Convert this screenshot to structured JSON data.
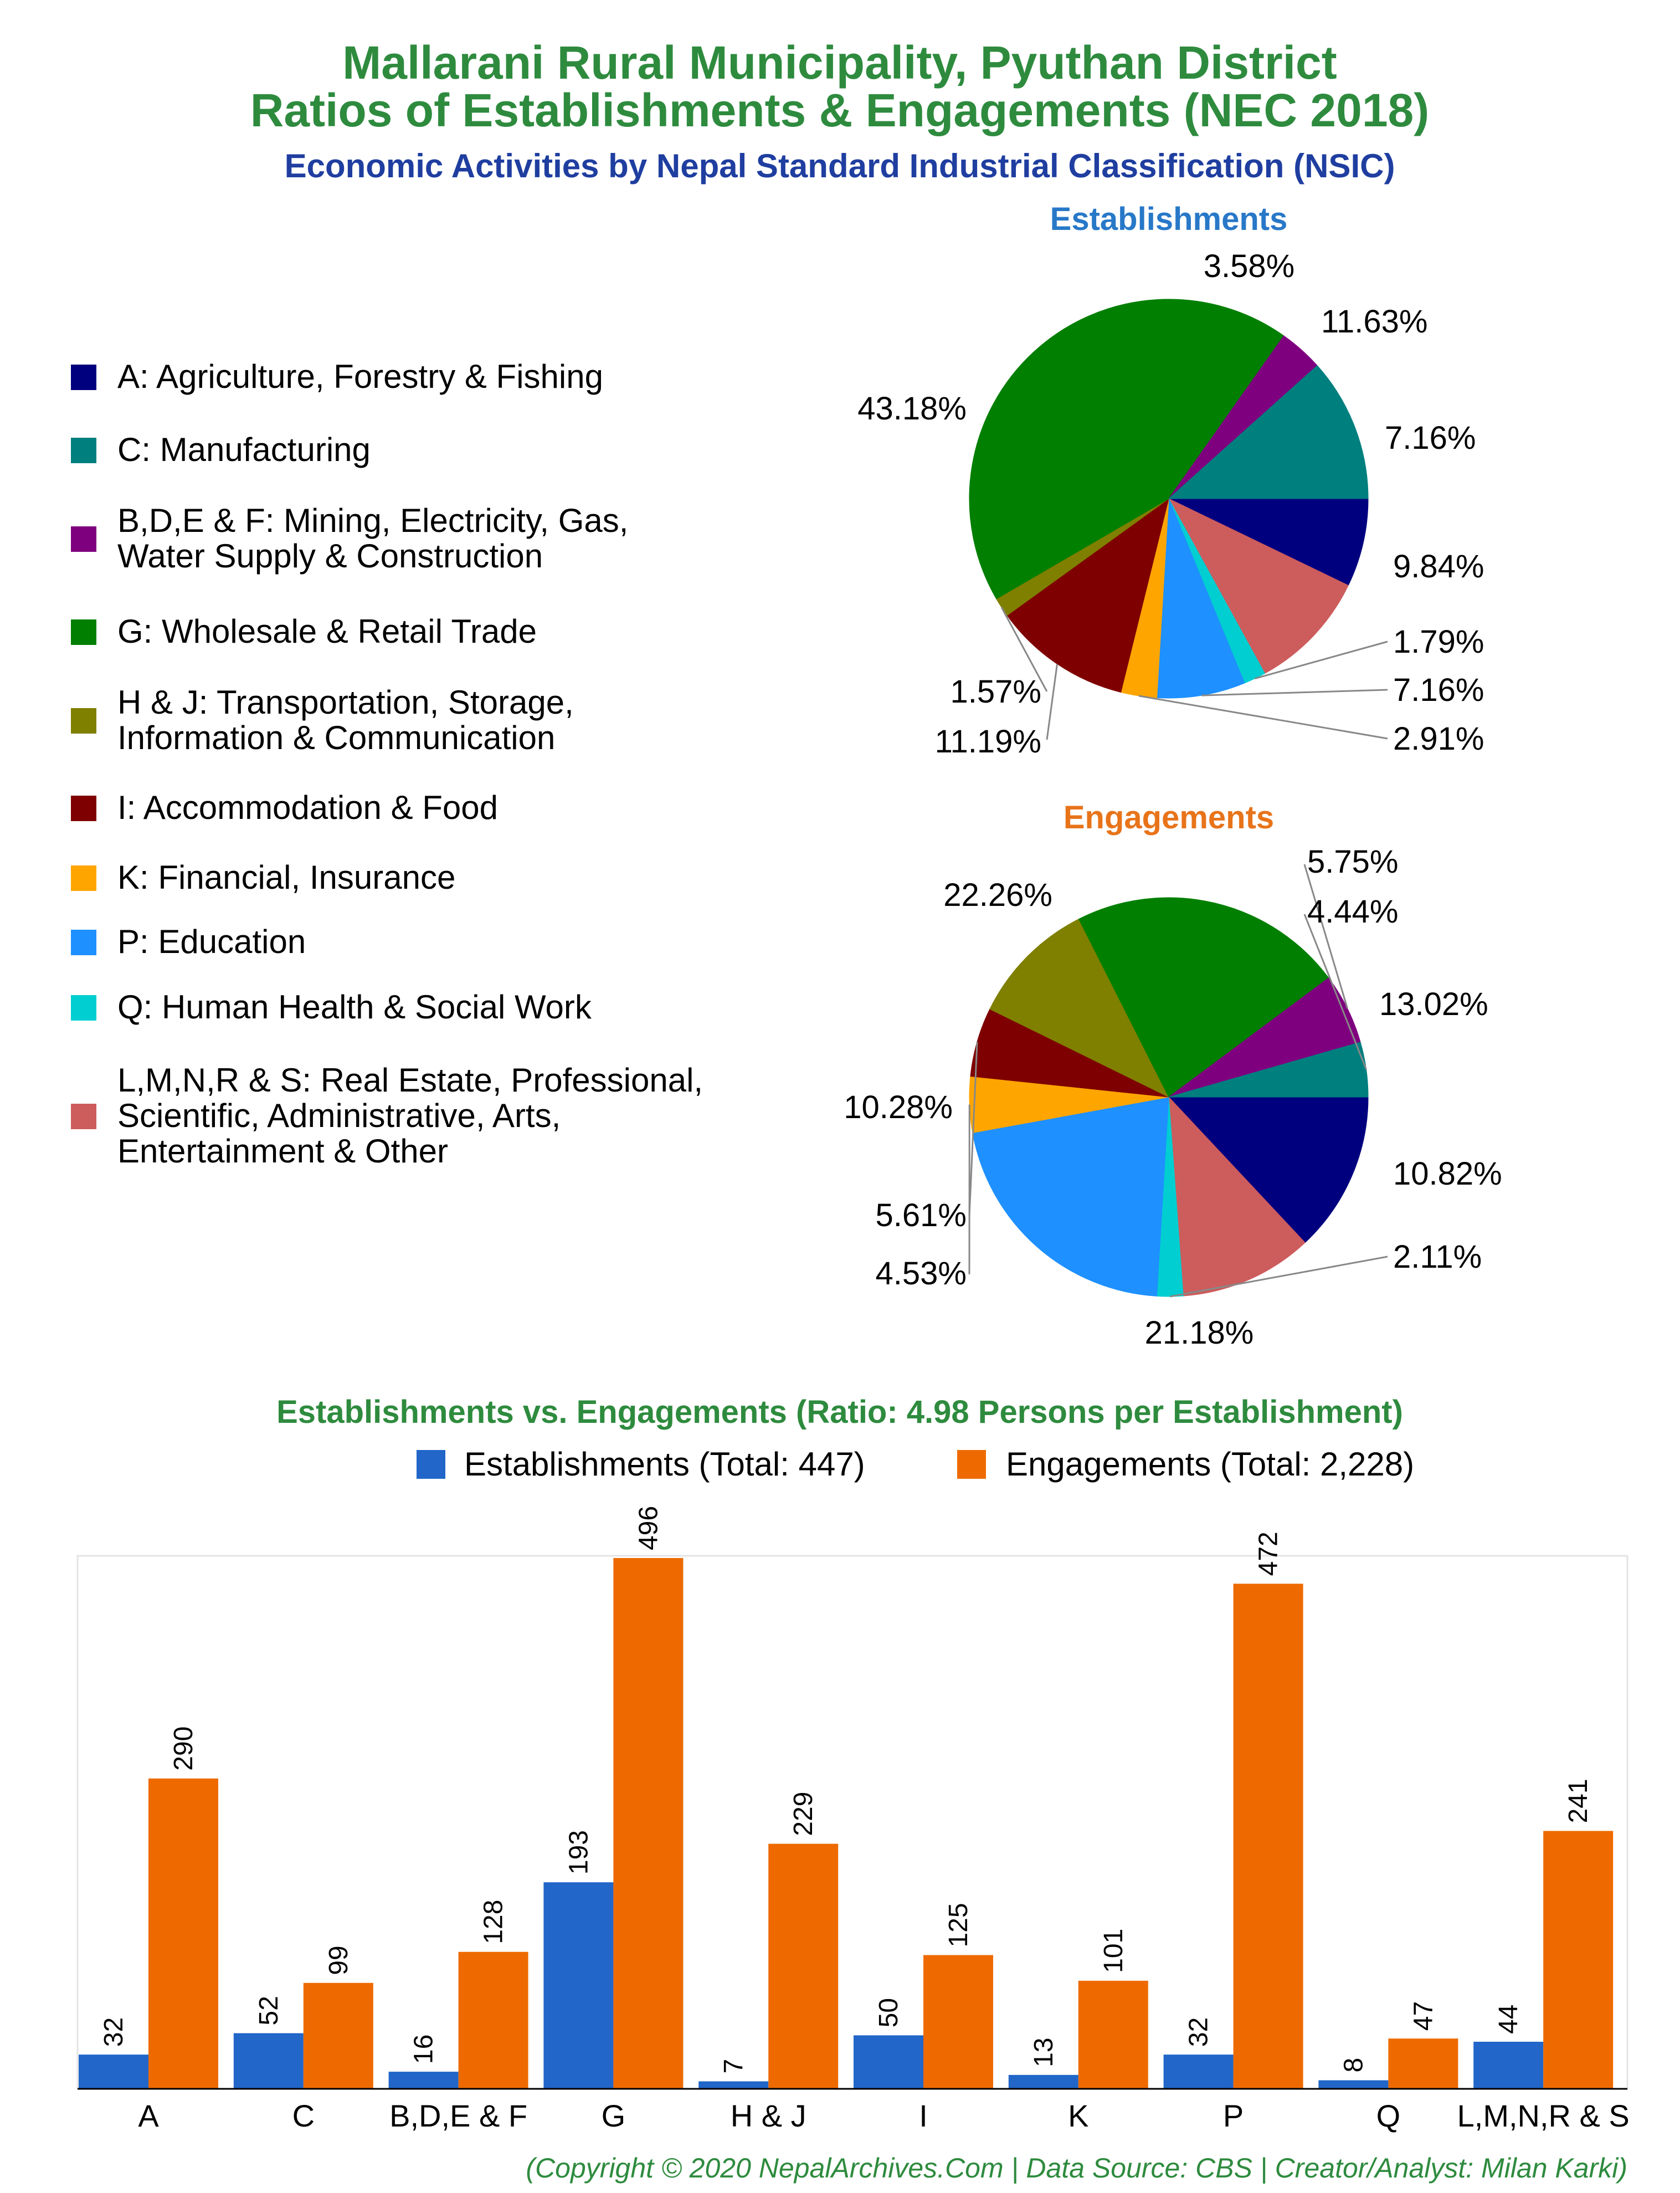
{
  "header": {
    "title_line1": "Mallarani Rural Municipality, Pyuthan District",
    "title_line2": "Ratios of Establishments & Engagements (NEC 2018)",
    "subtitle": "Economic Activities by Nepal Standard Industrial Classification (NSIC)"
  },
  "colors": {
    "title": "#2e8b3e",
    "subtitle": "#1f3ea0",
    "establishments_title": "#2878c8",
    "engagements_title": "#e8741a",
    "establishments_bar": "#2166c8",
    "engagements_bar": "#ee6a00"
  },
  "legend": {
    "items": [
      {
        "label_lines": [
          "A: Agriculture, Forestry & Fishing"
        ],
        "color": "#00007f"
      },
      {
        "label_lines": [
          "C: Manufacturing"
        ],
        "color": "#007f7f"
      },
      {
        "label_lines": [
          "B,D,E & F: Mining, Electricity, Gas,",
          "Water Supply & Construction"
        ],
        "color": "#7f007f"
      },
      {
        "label_lines": [
          "G: Wholesale & Retail Trade"
        ],
        "color": "#007f00"
      },
      {
        "label_lines": [
          "H & J: Transportation, Storage,",
          "Information & Communication"
        ],
        "color": "#7f7f00"
      },
      {
        "label_lines": [
          "I: Accommodation & Food"
        ],
        "color": "#7f0000"
      },
      {
        "label_lines": [
          "K: Financial, Insurance"
        ],
        "color": "#ffa500"
      },
      {
        "label_lines": [
          "P: Education"
        ],
        "color": "#1e90ff"
      },
      {
        "label_lines": [
          "Q: Human Health & Social Work"
        ],
        "color": "#00ced1"
      },
      {
        "label_lines": [
          "L,M,N,R & S: Real Estate, Professional,",
          "Scientific, Administrative, Arts,",
          "Entertainment & Other"
        ],
        "color": "#cd5c5c"
      }
    ]
  },
  "chart_data": [
    {
      "type": "pie",
      "title": "Establishments",
      "slices": [
        {
          "category": "A",
          "value": 7.16,
          "label": "7.16%",
          "color": "#00007f"
        },
        {
          "category": "L,M,N,R & S",
          "value": 9.84,
          "label": "9.84%",
          "color": "#cd5c5c"
        },
        {
          "category": "Q",
          "value": 1.79,
          "label": "1.79%",
          "color": "#00ced1"
        },
        {
          "category": "P",
          "value": 7.16,
          "label": "7.16%",
          "color": "#1e90ff"
        },
        {
          "category": "K",
          "value": 2.91,
          "label": "2.91%",
          "color": "#ffa500"
        },
        {
          "category": "I",
          "value": 11.19,
          "label": "11.19%",
          "color": "#7f0000"
        },
        {
          "category": "H & J",
          "value": 1.57,
          "label": "1.57%",
          "color": "#7f7f00"
        },
        {
          "category": "G",
          "value": 43.18,
          "label": "43.18%",
          "color": "#007f00"
        },
        {
          "category": "B,D,E & F",
          "value": 3.58,
          "label": "3.58%",
          "color": "#7f007f"
        },
        {
          "category": "C",
          "value": 11.63,
          "label": "11.63%",
          "color": "#007f7f"
        }
      ]
    },
    {
      "type": "pie",
      "title": "Engagements",
      "slices": [
        {
          "category": "A",
          "value": 13.02,
          "label": "13.02%",
          "color": "#00007f"
        },
        {
          "category": "L,M,N,R & S",
          "value": 10.82,
          "label": "10.82%",
          "color": "#cd5c5c"
        },
        {
          "category": "Q",
          "value": 2.11,
          "label": "2.11%",
          "color": "#00ced1"
        },
        {
          "category": "P",
          "value": 21.18,
          "label": "21.18%",
          "color": "#1e90ff"
        },
        {
          "category": "K",
          "value": 4.53,
          "label": "4.53%",
          "color": "#ffa500"
        },
        {
          "category": "I",
          "value": 5.61,
          "label": "5.61%",
          "color": "#7f0000"
        },
        {
          "category": "H & J",
          "value": 10.28,
          "label": "10.28%",
          "color": "#7f7f00"
        },
        {
          "category": "G",
          "value": 22.26,
          "label": "22.26%",
          "color": "#007f00"
        },
        {
          "category": "B,D,E & F",
          "value": 5.75,
          "label": "5.75%",
          "color": "#7f007f"
        },
        {
          "category": "C",
          "value": 4.44,
          "label": "4.44%",
          "color": "#007f7f"
        }
      ]
    },
    {
      "type": "bar",
      "title": "Establishments vs. Engagements (Ratio: 4.98 Persons per Establishment)",
      "categories": [
        "A",
        "C",
        "B,D,E & F",
        "G",
        "H & J",
        "I",
        "K",
        "P",
        "Q",
        "L,M,N,R & S"
      ],
      "series": [
        {
          "name": "Establishments (Total: 447)",
          "values": [
            32,
            52,
            16,
            193,
            7,
            50,
            13,
            32,
            8,
            44
          ]
        },
        {
          "name": "Engagements (Total: 2,228)",
          "values": [
            290,
            99,
            128,
            496,
            229,
            125,
            101,
            472,
            47,
            241
          ]
        }
      ],
      "ylim": [
        0,
        500
      ],
      "legend_position": "top"
    }
  ],
  "footer": {
    "credit": "(Copyright © 2020 NepalArchives.Com | Data Source: CBS | Creator/Analyst: Milan Karki)"
  }
}
